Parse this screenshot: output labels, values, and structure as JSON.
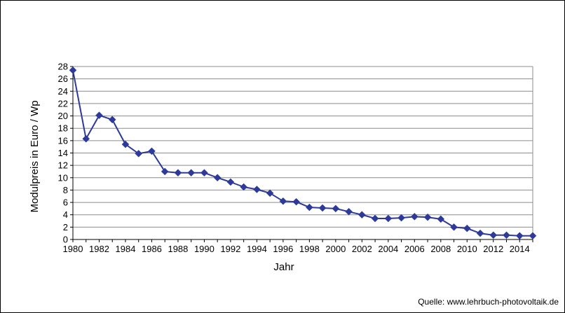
{
  "chart_data": {
    "type": "line",
    "xlabel": "Jahr",
    "ylabel": "Modulpreis in Euro / Wp",
    "xlim": [
      1980,
      2015
    ],
    "ylim": [
      0,
      28
    ],
    "y_ticks": [
      0,
      2,
      4,
      6,
      8,
      10,
      12,
      14,
      16,
      18,
      20,
      22,
      24,
      26,
      28
    ],
    "x_ticks": [
      1980,
      1982,
      1984,
      1986,
      1988,
      1990,
      1992,
      1994,
      1996,
      1998,
      2000,
      2002,
      2004,
      2006,
      2008,
      2010,
      2012,
      2014
    ],
    "grid": "horizontal",
    "series_color": "#2e3a9a",
    "x": [
      1980,
      1981,
      1982,
      1983,
      1984,
      1985,
      1986,
      1987,
      1988,
      1989,
      1990,
      1991,
      1992,
      1993,
      1994,
      1995,
      1996,
      1997,
      1998,
      1999,
      2000,
      2001,
      2002,
      2003,
      2004,
      2005,
      2006,
      2007,
      2008,
      2009,
      2010,
      2011,
      2012,
      2013,
      2014,
      2015
    ],
    "values": [
      27.4,
      16.3,
      20.1,
      19.4,
      15.4,
      13.9,
      14.3,
      11.0,
      10.8,
      10.8,
      10.8,
      10.0,
      9.3,
      8.5,
      8.1,
      7.5,
      6.2,
      6.1,
      5.2,
      5.1,
      5.0,
      4.5,
      4.0,
      3.4,
      3.4,
      3.5,
      3.7,
      3.6,
      3.3,
      2.0,
      1.8,
      1.0,
      0.7,
      0.7,
      0.6,
      0.6
    ]
  },
  "source": "Quelle: www.lehrbuch-photovoltaik.de"
}
